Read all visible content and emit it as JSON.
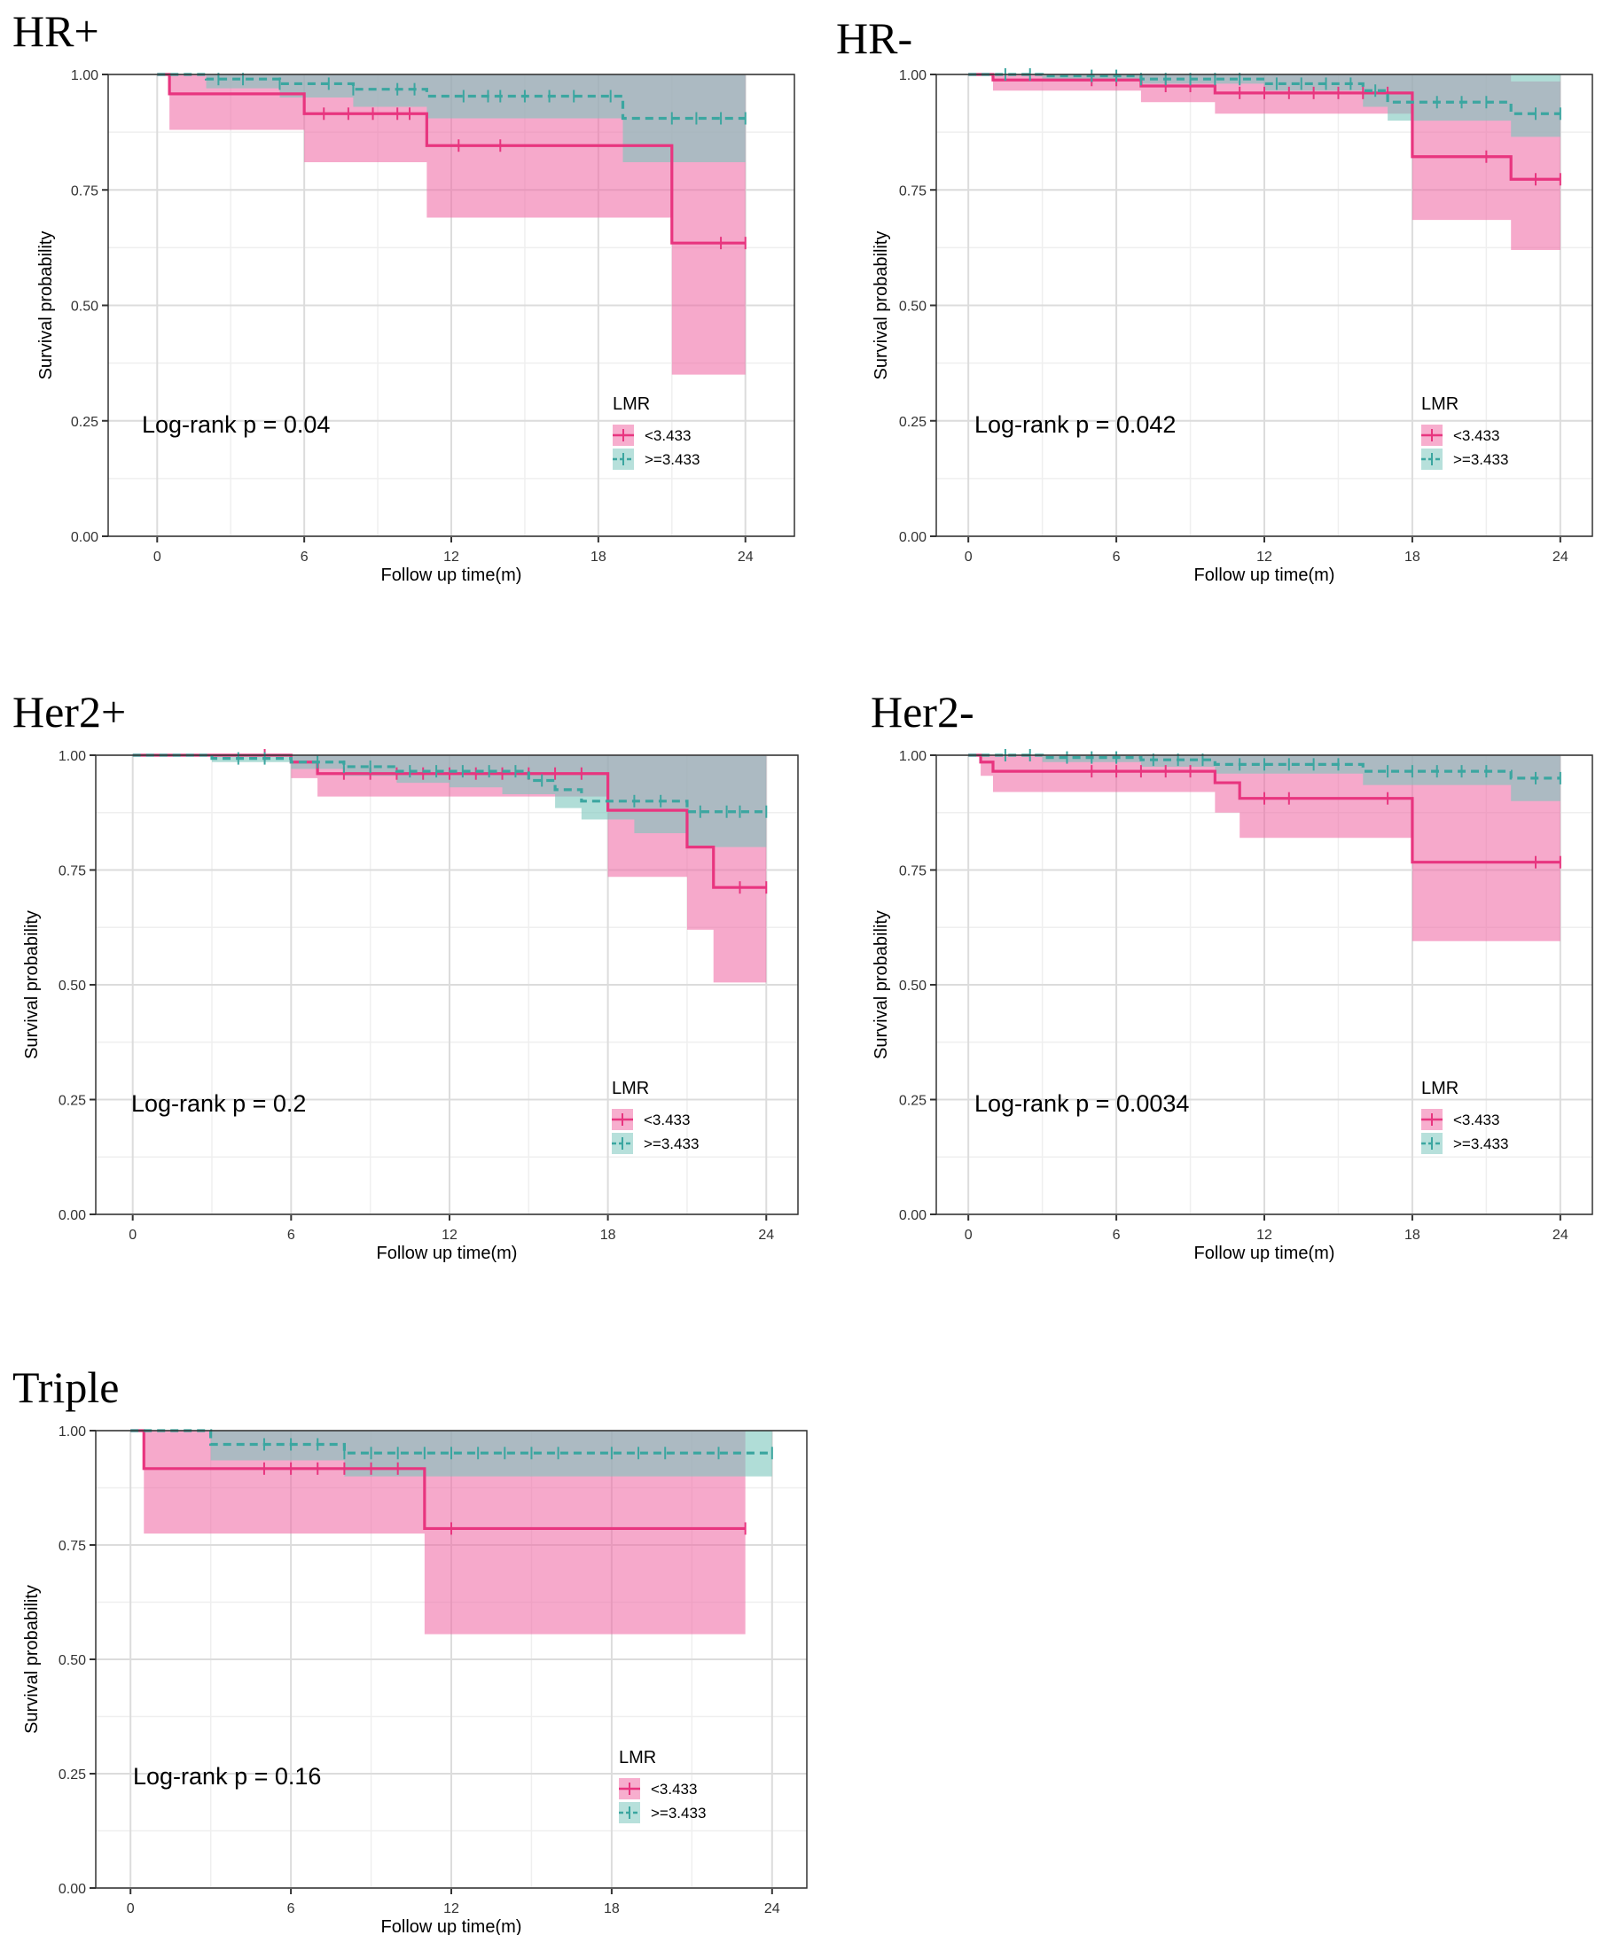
{
  "figure": {
    "legend_title": "LMR",
    "legend_labels": [
      "<3.433",
      ">=3.433"
    ],
    "x_title": "Follow up time(m)",
    "y_title": "Survival probability",
    "colors": {
      "low": "#E8357F",
      "low_fill": "#F06BA6",
      "high": "#3BA6A0",
      "high_fill": "#7CC6BD",
      "overlap": "#8C93B5",
      "grid_major": "#DCDCDC",
      "grid_minor": "#EFEFEF",
      "frame": "#333333"
    }
  },
  "chart_data": [
    {
      "type": "line",
      "panel": "HR+",
      "title": "HR+",
      "pvalue_label": "Log-rank p = 0.04",
      "xlabel": "Follow up time(m)",
      "ylabel": "Survival probability",
      "xlim": [
        -2,
        26
      ],
      "ylim": [
        0,
        1
      ],
      "xticks": [
        0,
        6,
        12,
        18,
        24
      ],
      "yticks": [
        0.0,
        0.25,
        0.5,
        0.75,
        1.0
      ],
      "xtick_labels": [
        "0",
        "6",
        "12",
        "18",
        "24"
      ],
      "ytick_labels": [
        "0.00",
        "0.25",
        "0.50",
        "0.75",
        "1.00"
      ],
      "series": [
        {
          "name": "<3.433",
          "end": 24,
          "steps": [
            [
              0,
              1.0
            ],
            [
              0.5,
              0.958
            ],
            [
              6,
              0.915
            ],
            [
              11,
              0.846
            ],
            [
              21,
              0.635
            ]
          ],
          "lower": [
            [
              0,
              1.0
            ],
            [
              0.5,
              0.88
            ],
            [
              6,
              0.81
            ],
            [
              11,
              0.69
            ],
            [
              21,
              0.35
            ]
          ],
          "upper": [
            [
              0,
              1.0
            ],
            [
              24,
              1.0
            ]
          ],
          "censor": [
            6.8,
            7.8,
            8.8,
            9.8,
            10.3,
            12.3,
            14.0,
            23.0,
            24.0
          ]
        },
        {
          "name": ">=3.433",
          "end": 24,
          "steps": [
            [
              0,
              1.0
            ],
            [
              2,
              0.99
            ],
            [
              5,
              0.98
            ],
            [
              8,
              0.968
            ],
            [
              11,
              0.953
            ],
            [
              19,
              0.905
            ]
          ],
          "lower": [
            [
              0,
              1.0
            ],
            [
              2,
              0.97
            ],
            [
              5,
              0.95
            ],
            [
              8,
              0.93
            ],
            [
              11,
              0.905
            ],
            [
              19,
              0.81
            ]
          ],
          "upper": [
            [
              0,
              1.0
            ],
            [
              24,
              1.0
            ]
          ],
          "censor": [
            2.5,
            3.5,
            5.0,
            7.0,
            8.0,
            9.8,
            10.5,
            12.5,
            13.5,
            14.0,
            15.0,
            16.0,
            17.0,
            18.5,
            21.0,
            22.0,
            23.0,
            24.0
          ]
        }
      ]
    },
    {
      "type": "line",
      "panel": "HR-",
      "title": "HR-",
      "pvalue_label": "Log-rank p = 0.042",
      "xlabel": "Follow up time(m)",
      "ylabel": "Survival probability",
      "xlim": [
        -1.3,
        25.3
      ],
      "ylim": [
        0,
        1
      ],
      "xticks": [
        0,
        6,
        12,
        18,
        24
      ],
      "yticks": [
        0.0,
        0.25,
        0.5,
        0.75,
        1.0
      ],
      "xtick_labels": [
        "0",
        "6",
        "12",
        "18",
        "24"
      ],
      "ytick_labels": [
        "0.00",
        "0.25",
        "0.50",
        "0.75",
        "1.00"
      ],
      "series": [
        {
          "name": "<3.433",
          "end": 24,
          "steps": [
            [
              0,
              1.0
            ],
            [
              1,
              0.988
            ],
            [
              7,
              0.975
            ],
            [
              10,
              0.96
            ],
            [
              18,
              0.822
            ],
            [
              22,
              0.773
            ]
          ],
          "lower": [
            [
              0,
              1.0
            ],
            [
              1,
              0.965
            ],
            [
              7,
              0.94
            ],
            [
              10,
              0.915
            ],
            [
              18,
              0.685
            ],
            [
              22,
              0.62
            ]
          ],
          "upper": [
            [
              0,
              1.0
            ],
            [
              21.5,
              1.0
            ],
            [
              22,
              0.985
            ],
            [
              24,
              0.985
            ]
          ],
          "censor": [
            5.0,
            6.0,
            8.0,
            9.0,
            11.0,
            12.0,
            13.0,
            14.0,
            15.0,
            16.0,
            17.0,
            21.0,
            23.0,
            24.0
          ]
        },
        {
          "name": ">=3.433",
          "end": 24,
          "steps": [
            [
              0,
              1.0
            ],
            [
              3,
              0.997
            ],
            [
              7,
              0.99
            ],
            [
              12,
              0.98
            ],
            [
              16,
              0.965
            ],
            [
              17,
              0.94
            ],
            [
              22,
              0.915
            ]
          ],
          "lower": [
            [
              0,
              1.0
            ],
            [
              3,
              0.99
            ],
            [
              7,
              0.98
            ],
            [
              12,
              0.965
            ],
            [
              16,
              0.93
            ],
            [
              17,
              0.9
            ],
            [
              22,
              0.865
            ]
          ],
          "upper": [
            [
              0,
              1.0
            ],
            [
              24,
              1.0
            ]
          ],
          "censor": [
            1.5,
            2.5,
            5.0,
            6.0,
            7.0,
            8.0,
            9.0,
            10.0,
            11.0,
            12.5,
            13.5,
            14.5,
            15.5,
            16.5,
            19.0,
            20.0,
            21.0,
            23.0,
            24.0
          ]
        }
      ]
    },
    {
      "type": "line",
      "panel": "Her2+",
      "title": "Her2+",
      "pvalue_label": "Log-rank p = 0.2",
      "xlabel": "Follow up time(m)",
      "ylabel": "Survival probability",
      "xlim": [
        -1.4,
        25.2
      ],
      "ylim": [
        0,
        1
      ],
      "xticks": [
        0,
        6,
        12,
        18,
        24
      ],
      "yticks": [
        0.0,
        0.25,
        0.5,
        0.75,
        1.0
      ],
      "xtick_labels": [
        "0",
        "6",
        "12",
        "18",
        "24"
      ],
      "ytick_labels": [
        "0.00",
        "0.25",
        "0.50",
        "0.75",
        "1.00"
      ],
      "series": [
        {
          "name": "<3.433",
          "end": 24,
          "steps": [
            [
              0,
              1.0
            ],
            [
              6,
              0.985
            ],
            [
              7,
              0.96
            ],
            [
              18,
              0.88
            ],
            [
              21,
              0.8
            ],
            [
              22,
              0.712
            ]
          ],
          "lower": [
            [
              0,
              1.0
            ],
            [
              6,
              0.95
            ],
            [
              7,
              0.91
            ],
            [
              18,
              0.735
            ],
            [
              21,
              0.62
            ],
            [
              22,
              0.505
            ]
          ],
          "upper": [
            [
              0,
              1.0
            ],
            [
              24,
              1.0
            ]
          ],
          "censor": [
            5.0,
            8.0,
            9.0,
            10.0,
            11.0,
            12.0,
            13.0,
            14.0,
            15.0,
            16.0,
            17.0,
            23.0,
            24.0
          ]
        },
        {
          "name": ">=3.433",
          "end": 24,
          "steps": [
            [
              0,
              1.0
            ],
            [
              3,
              0.993
            ],
            [
              6,
              0.985
            ],
            [
              8,
              0.975
            ],
            [
              10,
              0.965
            ],
            [
              15,
              0.945
            ],
            [
              16,
              0.925
            ],
            [
              17,
              0.9
            ],
            [
              21,
              0.877
            ]
          ],
          "lower": [
            [
              0,
              1.0
            ],
            [
              3,
              0.985
            ],
            [
              6,
              0.97
            ],
            [
              8,
              0.955
            ],
            [
              10,
              0.94
            ],
            [
              12,
              0.93
            ],
            [
              14,
              0.915
            ],
            [
              16,
              0.885
            ],
            [
              17,
              0.86
            ],
            [
              19,
              0.83
            ],
            [
              21,
              0.8
            ]
          ],
          "upper": [
            [
              0,
              1.0
            ],
            [
              24,
              1.0
            ]
          ],
          "censor": [
            4.0,
            5.0,
            7.0,
            8.0,
            9.0,
            10.5,
            11.5,
            12.5,
            13.5,
            14.5,
            15.5,
            19.0,
            20.0,
            21.5,
            22.5,
            23.0,
            24.0
          ]
        }
      ]
    },
    {
      "type": "line",
      "panel": "Her2-",
      "title": "Her2-",
      "pvalue_label": "Log-rank p = 0.0034",
      "xlabel": "Follow up time(m)",
      "ylabel": "Survival probability",
      "xlim": [
        -1.3,
        25.3
      ],
      "ylim": [
        0,
        1
      ],
      "xticks": [
        0,
        6,
        12,
        18,
        24
      ],
      "yticks": [
        0.0,
        0.25,
        0.5,
        0.75,
        1.0
      ],
      "xtick_labels": [
        "0",
        "6",
        "12",
        "18",
        "24"
      ],
      "ytick_labels": [
        "0.00",
        "0.25",
        "0.50",
        "0.75",
        "1.00"
      ],
      "series": [
        {
          "name": "<3.433",
          "end": 24,
          "steps": [
            [
              0,
              1.0
            ],
            [
              0.5,
              0.985
            ],
            [
              1,
              0.965
            ],
            [
              10,
              0.94
            ],
            [
              11,
              0.906
            ],
            [
              18,
              0.767
            ]
          ],
          "lower": [
            [
              0,
              1.0
            ],
            [
              0.5,
              0.955
            ],
            [
              1,
              0.92
            ],
            [
              10,
              0.875
            ],
            [
              11,
              0.82
            ],
            [
              18,
              0.595
            ]
          ],
          "upper": [
            [
              0,
              1.0
            ],
            [
              24,
              1.0
            ]
          ],
          "censor": [
            5.0,
            6.0,
            7.0,
            8.0,
            9.0,
            12.0,
            13.0,
            17.0,
            23.0,
            24.0
          ]
        },
        {
          "name": ">=3.433",
          "end": 24,
          "steps": [
            [
              0,
              1.0
            ],
            [
              3,
              0.995
            ],
            [
              7,
              0.99
            ],
            [
              10,
              0.98
            ],
            [
              16,
              0.965
            ],
            [
              22,
              0.95
            ]
          ],
          "lower": [
            [
              0,
              1.0
            ],
            [
              3,
              0.985
            ],
            [
              7,
              0.975
            ],
            [
              10,
              0.96
            ],
            [
              16,
              0.935
            ],
            [
              22,
              0.9
            ]
          ],
          "upper": [
            [
              0,
              1.0
            ],
            [
              24,
              1.0
            ]
          ],
          "censor": [
            1.5,
            2.5,
            4.0,
            5.0,
            6.0,
            7.5,
            8.5,
            9.5,
            11.0,
            12.0,
            13.0,
            14.0,
            15.0,
            17.0,
            18.0,
            19.0,
            20.0,
            21.0,
            23.0,
            24.0
          ]
        }
      ]
    },
    {
      "type": "line",
      "panel": "Triple",
      "title": "Triple",
      "pvalue_label": "Log-rank p = 0.16",
      "xlabel": "Follow up time(m)",
      "ylabel": "Survival probability",
      "xlim": [
        -1.3,
        25.3
      ],
      "ylim": [
        0,
        1
      ],
      "xticks": [
        0,
        6,
        12,
        18,
        24
      ],
      "yticks": [
        0.0,
        0.25,
        0.5,
        0.75,
        1.0
      ],
      "xtick_labels": [
        "0",
        "6",
        "12",
        "18",
        "24"
      ],
      "ytick_labels": [
        "0.00",
        "0.25",
        "0.50",
        "0.75",
        "1.00"
      ],
      "series": [
        {
          "name": "<3.433",
          "end": 23,
          "steps": [
            [
              0,
              1.0
            ],
            [
              0.5,
              0.917
            ],
            [
              11,
              0.786
            ]
          ],
          "lower": [
            [
              0,
              1.0
            ],
            [
              0.5,
              0.775
            ],
            [
              11,
              0.555
            ]
          ],
          "upper": [
            [
              0,
              1.0
            ],
            [
              23,
              1.0
            ]
          ],
          "censor": [
            5.0,
            6.0,
            7.0,
            8.0,
            9.0,
            10.0,
            12.0,
            23.0
          ]
        },
        {
          "name": ">=3.433",
          "end": 24,
          "steps": [
            [
              0,
              1.0
            ],
            [
              3,
              0.97
            ],
            [
              8,
              0.951
            ]
          ],
          "lower": [
            [
              0,
              1.0
            ],
            [
              3,
              0.935
            ],
            [
              8,
              0.9
            ]
          ],
          "upper": [
            [
              0,
              1.0
            ],
            [
              24,
              1.0
            ]
          ],
          "censor": [
            5.0,
            6.0,
            7.0,
            8.0,
            9.0,
            10.0,
            11.0,
            12.0,
            13.0,
            14.0,
            15.0,
            16.0,
            18.0,
            19.0,
            20.0,
            22.0,
            24.0
          ]
        }
      ]
    }
  ]
}
